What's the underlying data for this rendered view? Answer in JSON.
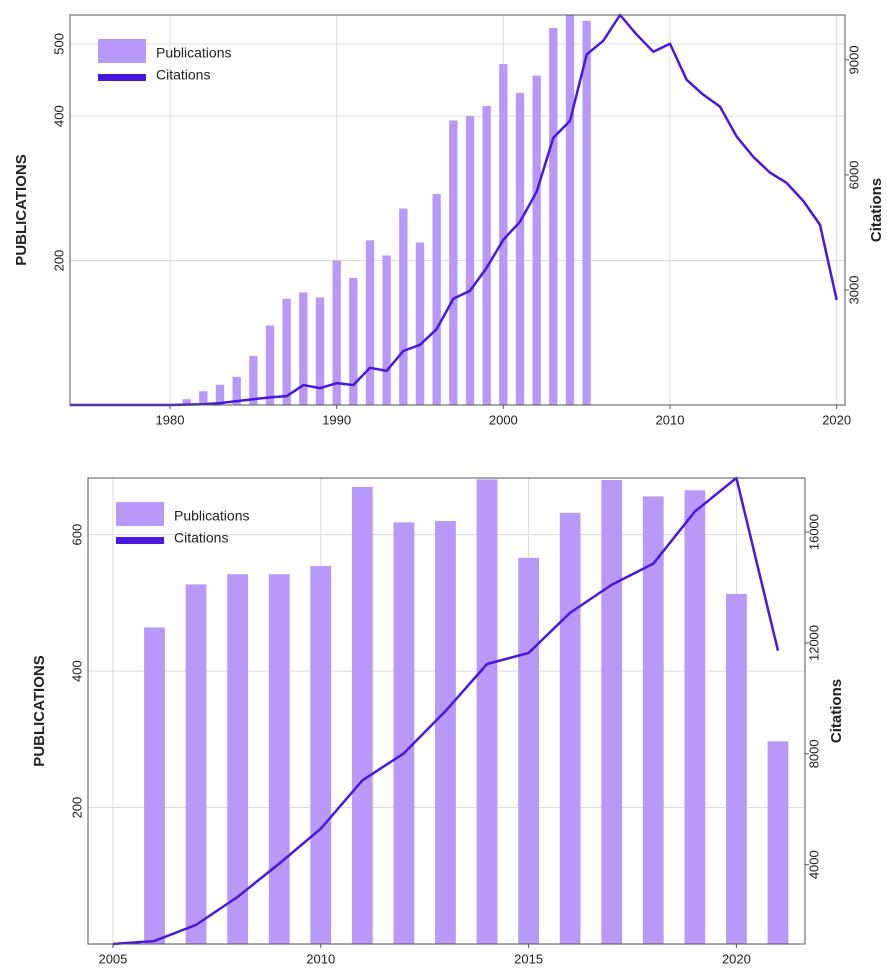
{
  "chart_data": [
    {
      "type": "bar_line",
      "y_label": "PUBLICATIONS",
      "y2_label": "Citations",
      "x": [
        1974,
        1975,
        1976,
        1977,
        1978,
        1979,
        1980,
        1981,
        1982,
        1983,
        1984,
        1985,
        1986,
        1987,
        1988,
        1989,
        1990,
        1991,
        1992,
        1993,
        1994,
        1995,
        1996,
        1997,
        1998,
        1999,
        2000,
        2001,
        2002,
        2003,
        2004,
        2005,
        2006,
        2007,
        2008,
        2009,
        2010,
        2011,
        2012,
        2013,
        2014,
        2015,
        2016,
        2017,
        2018,
        2019,
        2020
      ],
      "series": [
        {
          "name": "Publications",
          "type": "bar",
          "color": "#b899f7",
          "values": [
            null,
            null,
            null,
            null,
            null,
            null,
            null,
            8,
            19,
            28,
            39,
            68,
            110,
            147,
            156,
            149,
            200,
            176,
            228,
            207,
            272,
            225,
            292,
            394,
            400,
            414,
            472,
            432,
            456,
            522,
            540,
            532,
            null,
            null,
            null,
            null,
            null,
            null,
            null,
            null,
            null,
            null,
            null,
            null,
            null,
            null,
            null
          ]
        },
        {
          "name": "Citations",
          "type": "line",
          "axis": "y2",
          "color": "#4a17e0",
          "values": [
            0,
            0,
            0,
            0,
            0,
            0,
            0,
            10,
            20,
            50,
            100,
            150,
            200,
            230,
            520,
            440,
            570,
            520,
            970,
            890,
            1410,
            1570,
            1980,
            2770,
            2980,
            3580,
            4310,
            4780,
            5560,
            6970,
            7410,
            9140,
            9500,
            10170,
            9660,
            9210,
            9420,
            8480,
            8090,
            7780,
            7000,
            6470,
            6060,
            5790,
            5320,
            4700,
            2740
          ]
        }
      ],
      "xlim": [
        1974,
        2020.5
      ],
      "xticks": [
        1980,
        1990,
        2000,
        2010,
        2020
      ],
      "ylim": [
        0,
        540
      ],
      "yticks": [
        200,
        400,
        500
      ],
      "y2lim": [
        0,
        10170
      ],
      "y2ticks": [
        3000,
        6000,
        9000
      ],
      "grid": true,
      "legend": "upper left"
    },
    {
      "type": "bar_line",
      "y_label": "PUBLICATIONS",
      "y2_label": "Citations",
      "x": [
        2005,
        2006,
        2007,
        2008,
        2009,
        2010,
        2011,
        2012,
        2013,
        2014,
        2015,
        2016,
        2017,
        2018,
        2019,
        2020,
        2021
      ],
      "series": [
        {
          "name": "Publications",
          "type": "bar",
          "color": "#b899f7",
          "values": [
            null,
            464,
            527,
            542,
            542,
            554,
            670,
            618,
            620,
            681,
            566,
            632,
            680,
            656,
            665,
            513,
            297
          ]
        },
        {
          "name": "Citations",
          "type": "line",
          "axis": "y2",
          "color": "#4a17e0",
          "values": [
            1140,
            1250,
            1830,
            2840,
            4040,
            5300,
            7040,
            8020,
            9540,
            11240,
            11640,
            13090,
            14100,
            14860,
            16740,
            17950,
            11720
          ]
        }
      ],
      "xlim": [
        2004.4,
        2021.65
      ],
      "xticks": [
        2005,
        2010,
        2015,
        2020
      ],
      "ylim": [
        0,
        683
      ],
      "yticks": [
        200,
        400,
        600
      ],
      "y2lim": [
        1140,
        17950
      ],
      "y2ticks": [
        4000,
        8000,
        12000,
        16000
      ],
      "grid": true,
      "legend": "upper left"
    }
  ]
}
